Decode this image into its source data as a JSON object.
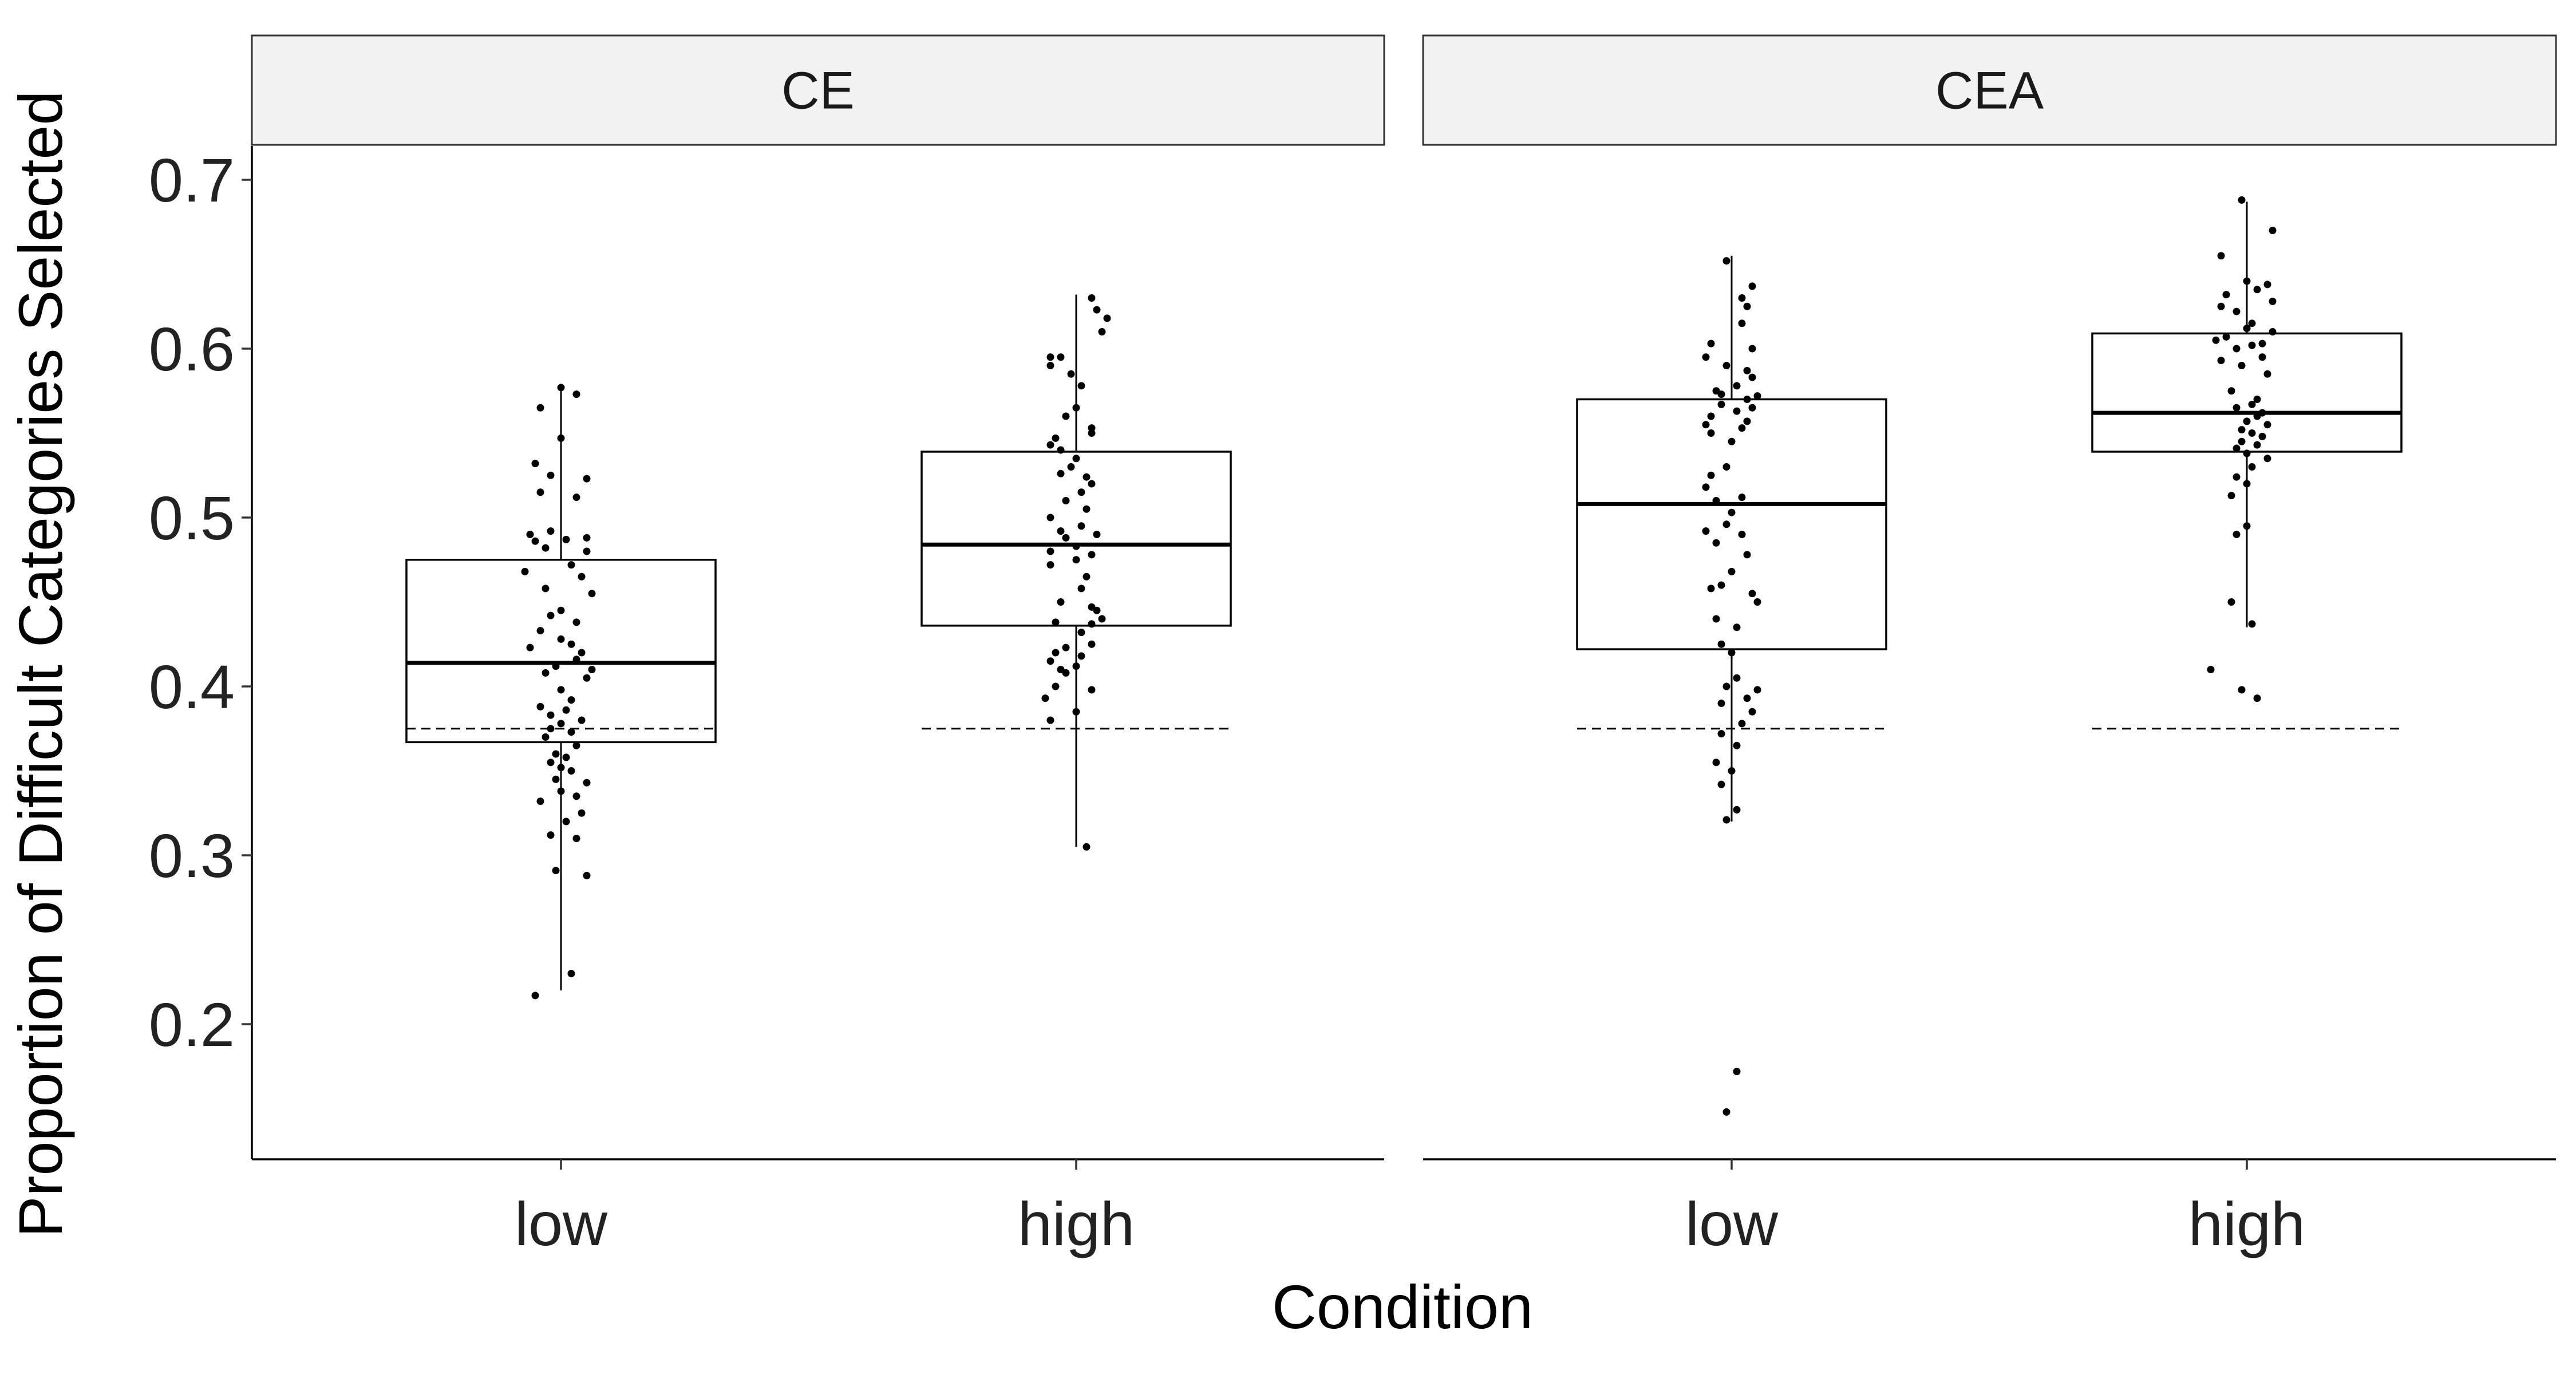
{
  "chart_data": {
    "type": "box",
    "xlabel": "Condition",
    "ylabel": "Proportion of Difficult Categories Selected",
    "categories": [
      "low",
      "high"
    ],
    "ylim": [
      0.12,
      0.72
    ],
    "yticks": [
      0.2,
      0.3,
      0.4,
      0.5,
      0.6,
      0.7
    ],
    "ytick_labels": [
      "0.2",
      "0.3",
      "0.4",
      "0.5",
      "0.6",
      "0.7"
    ],
    "reference_line": 0.375,
    "grid": false,
    "colors": {
      "box_fill": "#ffffff",
      "lines": "#000000",
      "strip_fill": "#f2f2f2"
    },
    "panels": [
      {
        "label": "CE",
        "groups": [
          {
            "category": "low",
            "box": {
              "min": 0.22,
              "q1": 0.367,
              "median": 0.414,
              "q3": 0.475,
              "max": 0.577
            },
            "points": [
              [
                -0.05,
                0.217
              ],
              [
                0.02,
                0.23
              ],
              [
                0.05,
                0.288
              ],
              [
                -0.01,
                0.291
              ],
              [
                0.03,
                0.31
              ],
              [
                -0.02,
                0.312
              ],
              [
                0.01,
                0.32
              ],
              [
                0.04,
                0.325
              ],
              [
                -0.04,
                0.332
              ],
              [
                0.03,
                0.335
              ],
              [
                0.0,
                0.338
              ],
              [
                0.05,
                0.343
              ],
              [
                -0.01,
                0.345
              ],
              [
                0.02,
                0.35
              ],
              [
                0.0,
                0.352
              ],
              [
                -0.02,
                0.355
              ],
              [
                0.01,
                0.358
              ],
              [
                -0.01,
                0.36
              ],
              [
                0.03,
                0.365
              ],
              [
                -0.03,
                0.37
              ],
              [
                0.02,
                0.373
              ],
              [
                -0.02,
                0.375
              ],
              [
                0.0,
                0.378
              ],
              [
                0.04,
                0.38
              ],
              [
                -0.02,
                0.383
              ],
              [
                0.01,
                0.386
              ],
              [
                -0.04,
                0.388
              ],
              [
                0.02,
                0.392
              ],
              [
                0.0,
                0.398
              ],
              [
                0.05,
                0.405
              ],
              [
                -0.03,
                0.408
              ],
              [
                0.06,
                0.41
              ],
              [
                -0.01,
                0.412
              ],
              [
                0.03,
                0.416
              ],
              [
                0.04,
                0.42
              ],
              [
                -0.06,
                0.423
              ],
              [
                0.02,
                0.425
              ],
              [
                0.0,
                0.428
              ],
              [
                -0.04,
                0.433
              ],
              [
                0.03,
                0.438
              ],
              [
                -0.02,
                0.442
              ],
              [
                0.0,
                0.445
              ],
              [
                0.06,
                0.455
              ],
              [
                -0.03,
                0.458
              ],
              [
                0.04,
                0.465
              ],
              [
                -0.07,
                0.468
              ],
              [
                0.02,
                0.472
              ],
              [
                0.05,
                0.48
              ],
              [
                -0.03,
                0.482
              ],
              [
                -0.05,
                0.486
              ],
              [
                0.01,
                0.487
              ],
              [
                0.05,
                0.488
              ],
              [
                -0.06,
                0.49
              ],
              [
                -0.02,
                0.492
              ],
              [
                0.03,
                0.512
              ],
              [
                -0.04,
                0.515
              ],
              [
                0.05,
                0.523
              ],
              [
                -0.02,
                0.525
              ],
              [
                -0.05,
                0.532
              ],
              [
                0.0,
                0.547
              ],
              [
                -0.04,
                0.565
              ],
              [
                0.0,
                0.577
              ],
              [
                0.03,
                0.573
              ]
            ]
          },
          {
            "category": "high",
            "box": {
              "min": 0.305,
              "q1": 0.436,
              "median": 0.484,
              "q3": 0.539,
              "max": 0.632
            },
            "points": [
              [
                0.02,
                0.305
              ],
              [
                -0.05,
                0.38
              ],
              [
                0.0,
                0.385
              ],
              [
                -0.06,
                0.393
              ],
              [
                0.03,
                0.398
              ],
              [
                -0.04,
                0.4
              ],
              [
                -0.02,
                0.408
              ],
              [
                -0.03,
                0.41
              ],
              [
                0.0,
                0.412
              ],
              [
                -0.05,
                0.415
              ],
              [
                0.01,
                0.418
              ],
              [
                -0.04,
                0.42
              ],
              [
                -0.02,
                0.423
              ],
              [
                0.03,
                0.425
              ],
              [
                0.01,
                0.432
              ],
              [
                0.03,
                0.437
              ],
              [
                -0.04,
                0.438
              ],
              [
                0.05,
                0.44
              ],
              [
                0.04,
                0.445
              ],
              [
                0.03,
                0.447
              ],
              [
                -0.03,
                0.45
              ],
              [
                0.01,
                0.458
              ],
              [
                0.02,
                0.465
              ],
              [
                -0.05,
                0.472
              ],
              [
                0.0,
                0.475
              ],
              [
                0.03,
                0.478
              ],
              [
                -0.05,
                0.48
              ],
              [
                0.0,
                0.483
              ],
              [
                -0.02,
                0.488
              ],
              [
                0.04,
                0.49
              ],
              [
                -0.03,
                0.492
              ],
              [
                0.01,
                0.495
              ],
              [
                -0.05,
                0.5
              ],
              [
                0.02,
                0.505
              ],
              [
                -0.02,
                0.51
              ],
              [
                0.01,
                0.515
              ],
              [
                0.03,
                0.52
              ],
              [
                0.02,
                0.524
              ],
              [
                -0.03,
                0.526
              ],
              [
                -0.01,
                0.53
              ],
              [
                0.0,
                0.535
              ],
              [
                -0.03,
                0.54
              ],
              [
                -0.05,
                0.543
              ],
              [
                -0.04,
                0.547
              ],
              [
                0.03,
                0.55
              ],
              [
                0.03,
                0.553
              ],
              [
                -0.02,
                0.56
              ],
              [
                0.0,
                0.565
              ],
              [
                0.01,
                0.578
              ],
              [
                -0.01,
                0.585
              ],
              [
                -0.05,
                0.59
              ],
              [
                -0.05,
                0.595
              ],
              [
                -0.03,
                0.595
              ],
              [
                0.05,
                0.61
              ],
              [
                0.06,
                0.618
              ],
              [
                0.04,
                0.623
              ],
              [
                0.03,
                0.63
              ]
            ]
          }
        ]
      },
      {
        "label": "CEA",
        "groups": [
          {
            "category": "low",
            "box": {
              "min": 0.32,
              "q1": 0.422,
              "median": 0.508,
              "q3": 0.57,
              "max": 0.655
            },
            "points": [
              [
                -0.01,
                0.148
              ],
              [
                0.01,
                0.172
              ],
              [
                -0.01,
                0.321
              ],
              [
                0.01,
                0.327
              ],
              [
                -0.02,
                0.342
              ],
              [
                0.0,
                0.35
              ],
              [
                -0.03,
                0.355
              ],
              [
                0.01,
                0.365
              ],
              [
                -0.02,
                0.372
              ],
              [
                0.02,
                0.378
              ],
              [
                0.04,
                0.385
              ],
              [
                -0.02,
                0.39
              ],
              [
                0.03,
                0.393
              ],
              [
                0.05,
                0.398
              ],
              [
                -0.01,
                0.4
              ],
              [
                0.01,
                0.405
              ],
              [
                0.0,
                0.42
              ],
              [
                -0.02,
                0.425
              ],
              [
                0.01,
                0.435
              ],
              [
                -0.03,
                0.44
              ],
              [
                0.05,
                0.45
              ],
              [
                0.04,
                0.455
              ],
              [
                -0.04,
                0.458
              ],
              [
                -0.02,
                0.46
              ],
              [
                0.0,
                0.468
              ],
              [
                0.03,
                0.478
              ],
              [
                -0.03,
                0.485
              ],
              [
                0.02,
                0.49
              ],
              [
                -0.05,
                0.492
              ],
              [
                -0.01,
                0.496
              ],
              [
                0.0,
                0.503
              ],
              [
                -0.03,
                0.51
              ],
              [
                0.02,
                0.512
              ],
              [
                -0.05,
                0.518
              ],
              [
                -0.04,
                0.525
              ],
              [
                -0.01,
                0.53
              ],
              [
                0.0,
                0.545
              ],
              [
                -0.04,
                0.55
              ],
              [
                0.02,
                0.553
              ],
              [
                -0.05,
                0.555
              ],
              [
                0.03,
                0.557
              ],
              [
                -0.04,
                0.56
              ],
              [
                0.01,
                0.563
              ],
              [
                0.04,
                0.565
              ],
              [
                -0.02,
                0.567
              ],
              [
                0.03,
                0.57
              ],
              [
                0.05,
                0.572
              ],
              [
                -0.02,
                0.573
              ],
              [
                -0.03,
                0.575
              ],
              [
                0.01,
                0.578
              ],
              [
                0.04,
                0.583
              ],
              [
                0.03,
                0.587
              ],
              [
                -0.01,
                0.59
              ],
              [
                -0.05,
                0.595
              ],
              [
                0.04,
                0.6
              ],
              [
                -0.04,
                0.603
              ],
              [
                0.02,
                0.615
              ],
              [
                0.03,
                0.625
              ],
              [
                0.02,
                0.63
              ],
              [
                0.04,
                0.637
              ],
              [
                -0.01,
                0.652
              ]
            ]
          },
          {
            "category": "high",
            "box": {
              "min": 0.435,
              "q1": 0.539,
              "median": 0.562,
              "q3": 0.609,
              "max": 0.687
            },
            "points": [
              [
                0.02,
                0.393
              ],
              [
                -0.01,
                0.398
              ],
              [
                -0.07,
                0.41
              ],
              [
                0.01,
                0.437
              ],
              [
                -0.03,
                0.45
              ],
              [
                -0.02,
                0.49
              ],
              [
                0.0,
                0.495
              ],
              [
                -0.03,
                0.513
              ],
              [
                0.0,
                0.52
              ],
              [
                -0.02,
                0.524
              ],
              [
                0.01,
                0.53
              ],
              [
                0.04,
                0.535
              ],
              [
                0.0,
                0.538
              ],
              [
                -0.02,
                0.541
              ],
              [
                0.02,
                0.543
              ],
              [
                -0.01,
                0.545
              ],
              [
                0.03,
                0.548
              ],
              [
                0.01,
                0.55
              ],
              [
                -0.01,
                0.552
              ],
              [
                0.04,
                0.555
              ],
              [
                0.0,
                0.557
              ],
              [
                0.02,
                0.56
              ],
              [
                0.03,
                0.562
              ],
              [
                -0.02,
                0.565
              ],
              [
                0.01,
                0.567
              ],
              [
                0.02,
                0.57
              ],
              [
                -0.03,
                0.575
              ],
              [
                0.04,
                0.585
              ],
              [
                -0.01,
                0.59
              ],
              [
                -0.05,
                0.593
              ],
              [
                0.03,
                0.595
              ],
              [
                -0.02,
                0.6
              ],
              [
                0.01,
                0.602
              ],
              [
                0.03,
                0.603
              ],
              [
                -0.06,
                0.605
              ],
              [
                -0.04,
                0.607
              ],
              [
                0.05,
                0.61
              ],
              [
                0.0,
                0.612
              ],
              [
                0.01,
                0.615
              ],
              [
                -0.02,
                0.622
              ],
              [
                -0.05,
                0.625
              ],
              [
                0.05,
                0.628
              ],
              [
                -0.04,
                0.632
              ],
              [
                0.02,
                0.635
              ],
              [
                0.04,
                0.638
              ],
              [
                0.0,
                0.64
              ],
              [
                -0.05,
                0.655
              ],
              [
                0.05,
                0.67
              ],
              [
                -0.01,
                0.688
              ]
            ]
          }
        ]
      }
    ]
  }
}
